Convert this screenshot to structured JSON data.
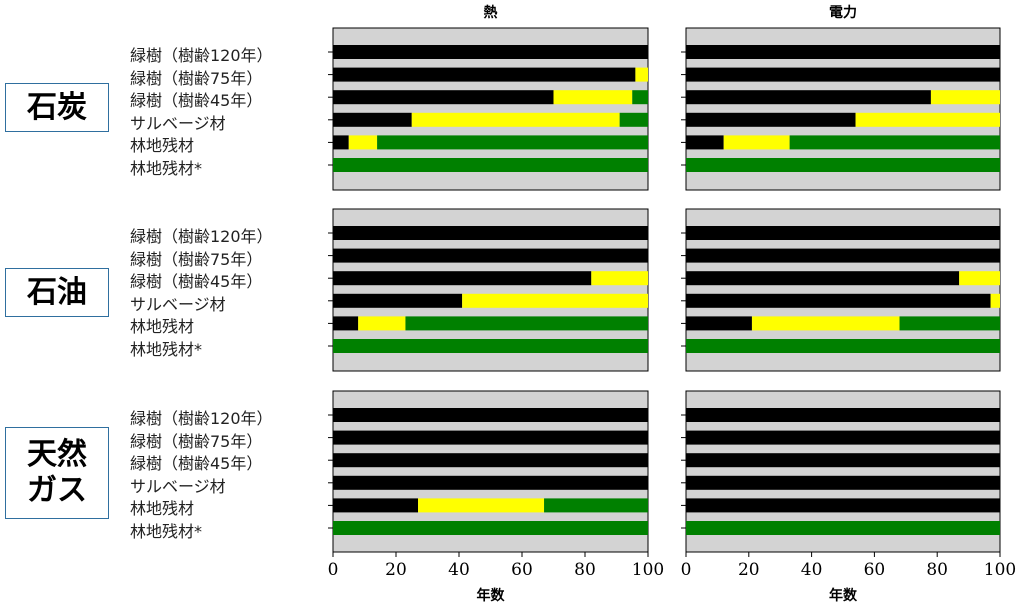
{
  "chart_data": {
    "type": "bar",
    "orientation": "horizontal",
    "stacked": true,
    "title": "",
    "columns": [
      "熱",
      "電力"
    ],
    "rows": [
      "石炭",
      "石油",
      "天然ガス"
    ],
    "row_display": [
      "石炭",
      "石油",
      "天然\nガス"
    ],
    "categories": [
      "緑樹（樹齢120年）",
      "緑樹（樹齢75年）",
      "緑樹（樹齢45年）",
      "サルベージ材",
      "林地残材",
      "林地残材*"
    ],
    "segment_colors": {
      "black": "#000000",
      "yellow": "#ffff00",
      "green": "#008000"
    },
    "panel_background": "#d3d3d3",
    "xlabel": "年数",
    "xlim": [
      0,
      100
    ],
    "xticks": [
      0,
      20,
      40,
      60,
      80,
      100
    ],
    "panels": [
      {
        "row": "石炭",
        "column": "熱",
        "bars": [
          [
            100,
            0,
            0
          ],
          [
            96,
            4,
            0
          ],
          [
            70,
            25,
            5
          ],
          [
            25,
            66,
            9
          ],
          [
            5,
            9,
            86
          ],
          [
            0,
            0,
            100
          ]
        ]
      },
      {
        "row": "石炭",
        "column": "電力",
        "bars": [
          [
            100,
            0,
            0
          ],
          [
            100,
            0,
            0
          ],
          [
            78,
            22,
            0
          ],
          [
            54,
            46,
            0
          ],
          [
            12,
            21,
            67
          ],
          [
            0,
            0,
            100
          ]
        ]
      },
      {
        "row": "石油",
        "column": "熱",
        "bars": [
          [
            100,
            0,
            0
          ],
          [
            100,
            0,
            0
          ],
          [
            82,
            18,
            0
          ],
          [
            41,
            59,
            0
          ],
          [
            8,
            15,
            77
          ],
          [
            0,
            0,
            100
          ]
        ]
      },
      {
        "row": "石油",
        "column": "電力",
        "bars": [
          [
            100,
            0,
            0
          ],
          [
            100,
            0,
            0
          ],
          [
            87,
            13,
            0
          ],
          [
            97,
            3,
            0
          ],
          [
            21,
            47,
            32
          ],
          [
            0,
            0,
            100
          ]
        ]
      },
      {
        "row": "天然ガス",
        "column": "熱",
        "bars": [
          [
            100,
            0,
            0
          ],
          [
            100,
            0,
            0
          ],
          [
            100,
            0,
            0
          ],
          [
            100,
            0,
            0
          ],
          [
            27,
            40,
            33
          ],
          [
            0,
            0,
            100
          ]
        ]
      },
      {
        "row": "天然ガス",
        "column": "電力",
        "bars": [
          [
            100,
            0,
            0
          ],
          [
            100,
            0,
            0
          ],
          [
            100,
            0,
            0
          ],
          [
            100,
            0,
            0
          ],
          [
            100,
            0,
            0
          ],
          [
            0,
            0,
            100
          ]
        ]
      }
    ]
  }
}
